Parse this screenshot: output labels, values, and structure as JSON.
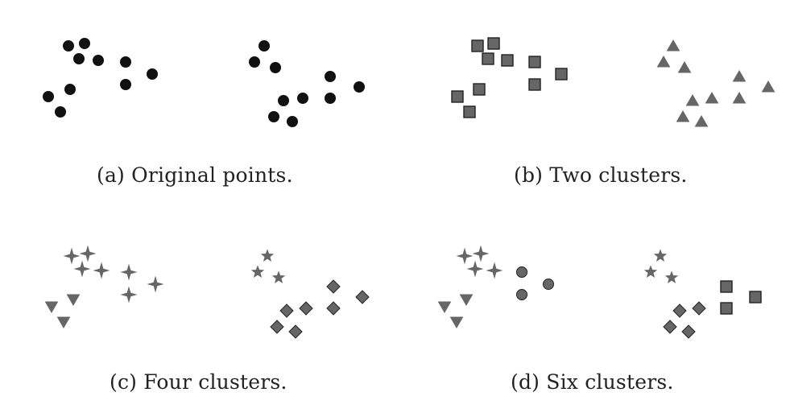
{
  "panels": [
    {
      "id": "a",
      "caption": "(a) Original points."
    },
    {
      "id": "b",
      "caption": "(b) Two clusters."
    },
    {
      "id": "c",
      "caption": "(c) Four clusters."
    },
    {
      "id": "d",
      "caption": "(d) Six clusters."
    }
  ],
  "colors": {
    "original_point": "#111111",
    "cluster_fill": "#666666",
    "cluster_stroke": "#222222"
  },
  "point_count_per_panel": 20,
  "cluster_symbols": {
    "a": [
      "circle"
    ],
    "b": [
      "square",
      "triangle"
    ],
    "c": [
      "plus-star",
      "triangle-down",
      "star",
      "diamond"
    ],
    "d": [
      "plus-star",
      "circle",
      "triangle-down",
      "star",
      "diamond",
      "square"
    ]
  }
}
